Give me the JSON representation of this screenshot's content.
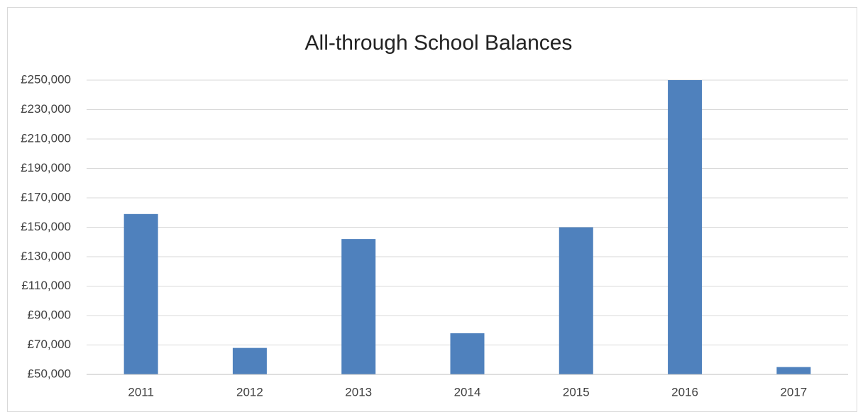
{
  "chart_data": {
    "type": "bar",
    "title": "All-through School Balances",
    "categories": [
      "2011",
      "2012",
      "2013",
      "2014",
      "2015",
      "2016",
      "2017"
    ],
    "values": [
      159000,
      68000,
      142000,
      78000,
      150000,
      250000,
      55000
    ],
    "color": "#4f81bd",
    "ylim": [
      50000,
      250000
    ],
    "yticks": [
      {
        "value": 50000,
        "label": "£50,000"
      },
      {
        "value": 70000,
        "label": "£70,000"
      },
      {
        "value": 90000,
        "label": "£90,000"
      },
      {
        "value": 110000,
        "label": "£110,000"
      },
      {
        "value": 130000,
        "label": "£130,000"
      },
      {
        "value": 150000,
        "label": "£150,000"
      },
      {
        "value": 170000,
        "label": "£170,000"
      },
      {
        "value": 190000,
        "label": "£190,000"
      },
      {
        "value": 210000,
        "label": "£210,000"
      },
      {
        "value": 230000,
        "label": "£230,000"
      },
      {
        "value": 250000,
        "label": "£250,000"
      }
    ],
    "grid": true
  }
}
